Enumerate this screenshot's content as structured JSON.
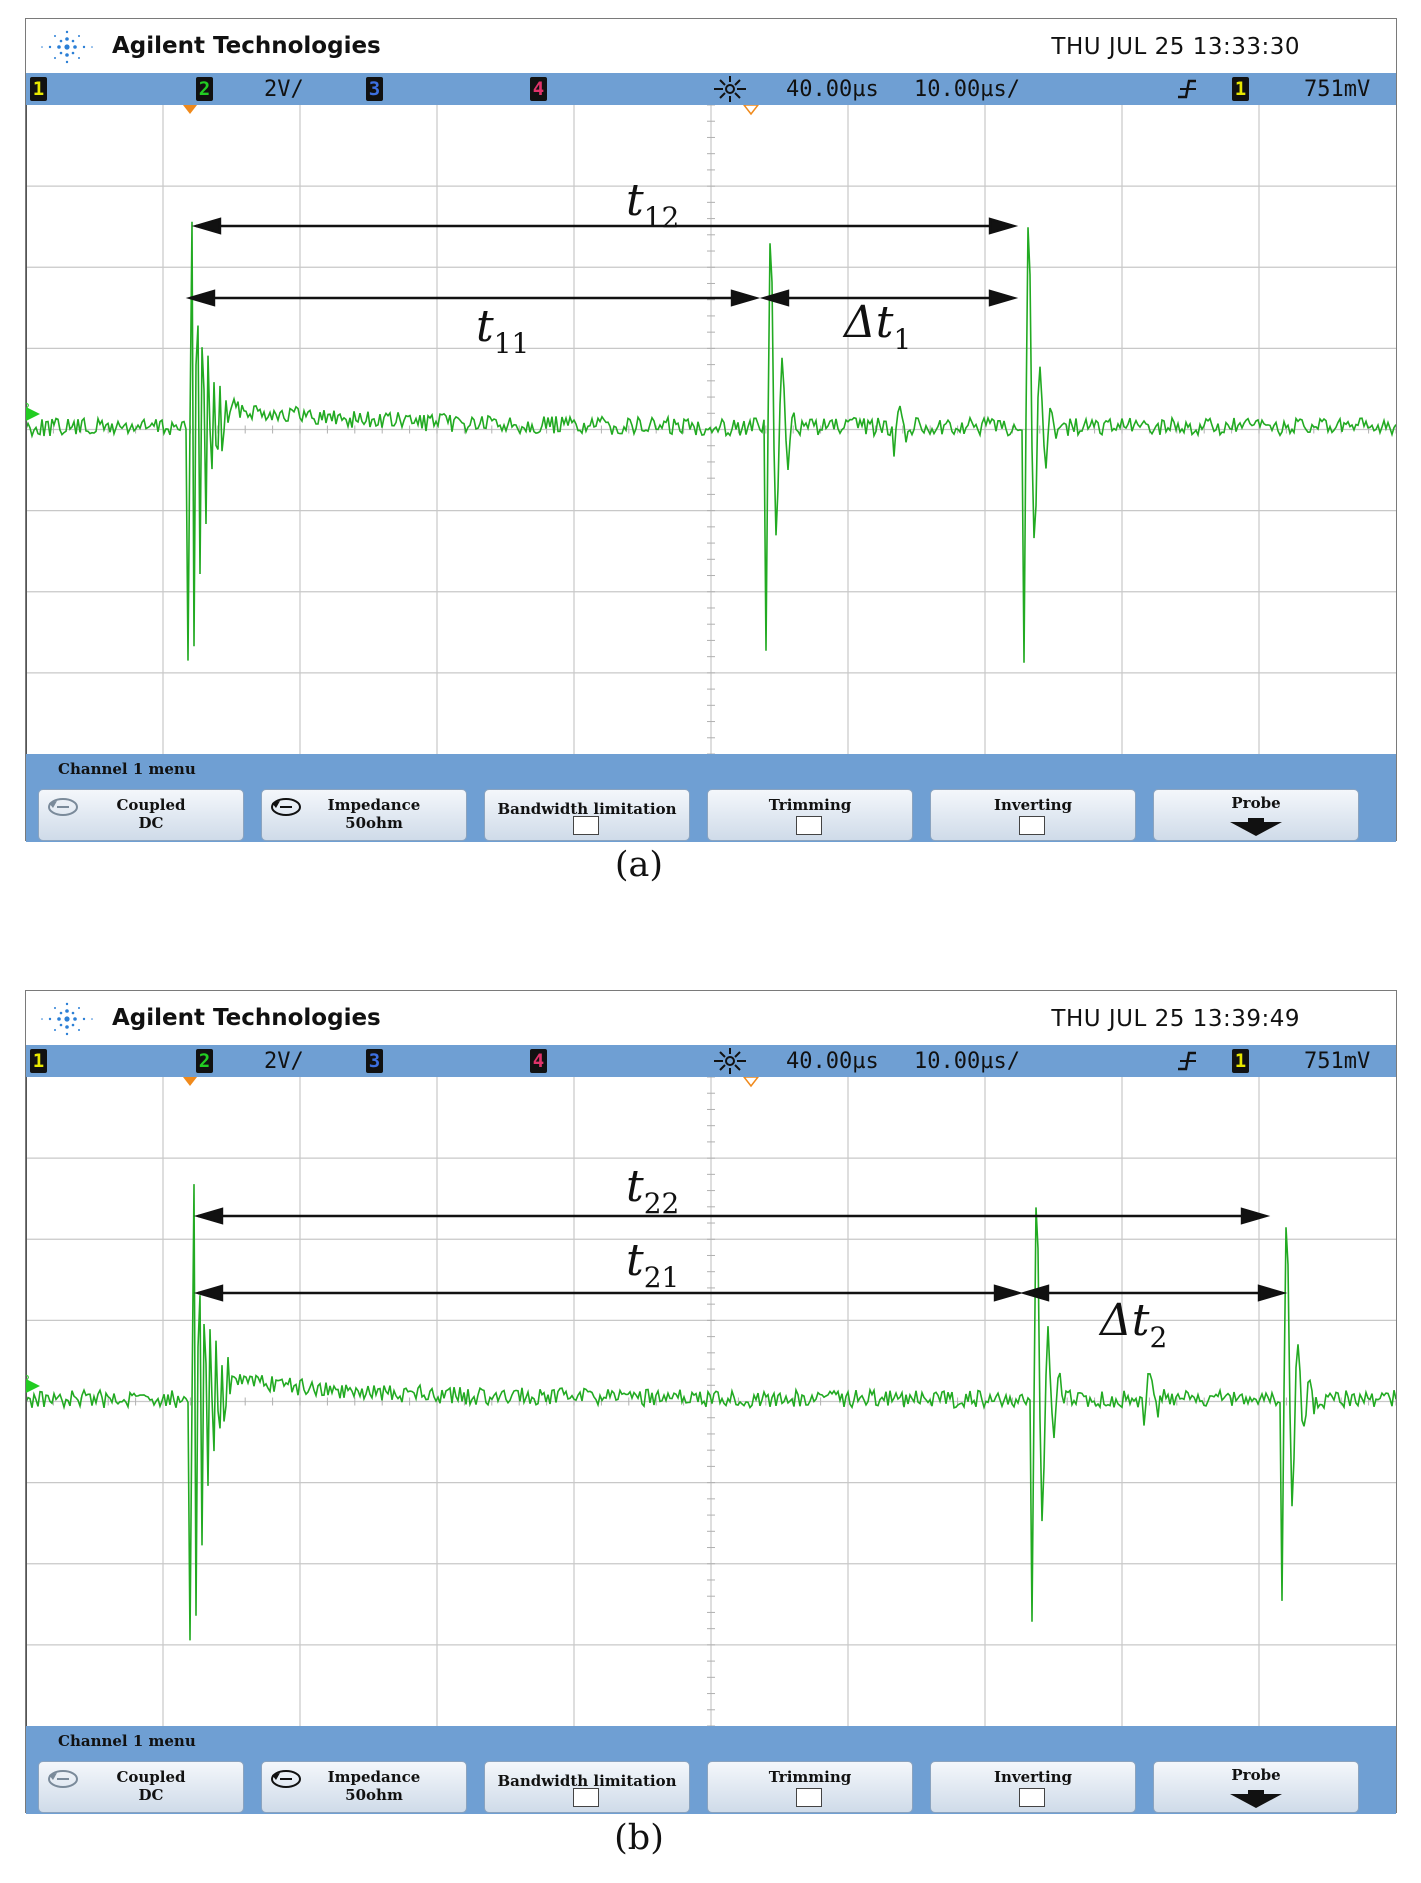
{
  "screens": [
    {
      "brand": "Agilent Technologies",
      "datetime": "THU JUL 25 13:33:30",
      "status": {
        "ch1": "1",
        "ch2": "2",
        "ch2_scale": "2V/",
        "ch3": "3",
        "ch4": "4",
        "time_delay": "40.00µs",
        "time_scale": "10.00µs/",
        "trigger_source": "1",
        "trigger_level": "751mV"
      },
      "ground_marker": "2",
      "menu": {
        "title": "Channel 1 menu",
        "softkeys": [
          {
            "line1": "Coupled",
            "line2": "DC"
          },
          {
            "line1": "Impedance",
            "line2": "50ohm"
          },
          {
            "label": "Bandwidth limitation"
          },
          {
            "label": "Trimming"
          },
          {
            "label": "Inverting"
          },
          {
            "label": "Probe"
          }
        ]
      },
      "annotations": {
        "upper": {
          "base": "t",
          "sub": "12"
        },
        "lower": {
          "base": "t",
          "sub": "11"
        },
        "delta": {
          "base": "Δt",
          "sub": "1"
        }
      },
      "caption": "(a)"
    },
    {
      "brand": "Agilent Technologies",
      "datetime": "THU JUL 25 13:39:49",
      "status": {
        "ch1": "1",
        "ch2": "2",
        "ch2_scale": "2V/",
        "ch3": "3",
        "ch4": "4",
        "time_delay": "40.00µs",
        "time_scale": "10.00µs/",
        "trigger_source": "1",
        "trigger_level": "751mV"
      },
      "ground_marker": "2",
      "menu": {
        "title": "Channel 1 menu",
        "softkeys": [
          {
            "line1": "Coupled",
            "line2": "DC"
          },
          {
            "line1": "Impedance",
            "line2": "50ohm"
          },
          {
            "label": "Bandwidth limitation"
          },
          {
            "label": "Trimming"
          },
          {
            "label": "Inverting"
          },
          {
            "label": "Probe"
          }
        ]
      },
      "annotations": {
        "upper": {
          "base": "t",
          "sub": "22"
        },
        "lower": {
          "base": "t",
          "sub": "21"
        },
        "delta": {
          "base": "Δt",
          "sub": "2"
        }
      },
      "caption": "(b)"
    }
  ],
  "colors": {
    "trace": "#22aa22",
    "status_bar": "#6f9fd3",
    "ch1": "#e8e800",
    "ch2": "#22cc22",
    "ch3": "#3d6fe0",
    "ch4": "#e0336a"
  },
  "icons": {
    "logo": "agilent-spark-icon",
    "run": "acquisition-run-icon",
    "trigger": "trigger-edge-icon",
    "cycle": "cycle-arrow-icon",
    "probe": "down-arrow-icon"
  }
}
